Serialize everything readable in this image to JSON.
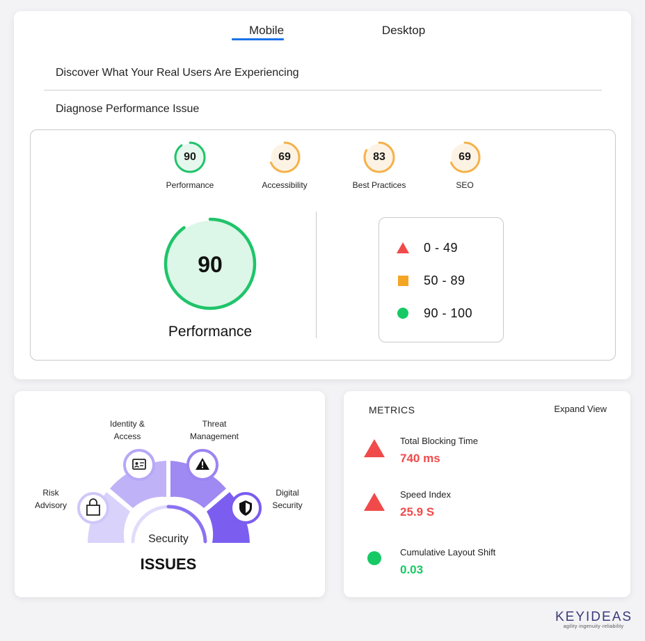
{
  "tabs": [
    {
      "label": "Mobile",
      "active": true
    },
    {
      "label": "Desktop",
      "active": false
    }
  ],
  "sections": {
    "discover": "Discover What Your Real Users Are Experiencing",
    "diagnose": "Diagnose Performance Issue"
  },
  "scores": [
    {
      "label": "Performance",
      "value": 90,
      "color": "#1fc46a",
      "fill": "#e6f8ee"
    },
    {
      "label": "Accessibility",
      "value": 69,
      "color": "#f5b14a",
      "fill": "#fdf3e4"
    },
    {
      "label": "Best Practices",
      "value": 83,
      "color": "#f5b14a",
      "fill": "#fdf3e4"
    },
    {
      "label": "SEO",
      "value": 69,
      "color": "#f5b14a",
      "fill": "#fdf3e4"
    }
  ],
  "main_score": {
    "label": "Performance",
    "value": 90,
    "color": "#1fc46a",
    "fill": "#dcf6e7"
  },
  "legend": [
    {
      "shape": "triangle",
      "color": "#f04a4a",
      "range": "0 - 49"
    },
    {
      "shape": "square",
      "color": "#f5a524",
      "range": "50 - 89"
    },
    {
      "shape": "circle",
      "color": "#17c964",
      "range": "90 - 100"
    }
  ],
  "security": {
    "center_label": "Security",
    "title": "ISSUES",
    "segments": [
      {
        "label_line1": "Risk",
        "label_line2": "Advisory",
        "icon": "shopping-bag-icon"
      },
      {
        "label_line1": "Identity &",
        "label_line2": "Access",
        "icon": "id-card-icon"
      },
      {
        "label_line1": "Threat",
        "label_line2": "Management",
        "icon": "warning-icon"
      },
      {
        "label_line1": "Digital",
        "label_line2": "Security",
        "icon": "shield-icon"
      }
    ]
  },
  "metrics": {
    "title": "METRICS",
    "expand_label": "Expand View",
    "items": [
      {
        "name": "Total Blocking Time",
        "value": "740 ms",
        "status": "triangle",
        "color": "#f04a4a"
      },
      {
        "name": "Speed Index",
        "value": "25.9 S",
        "status": "triangle",
        "color": "#f04a4a"
      },
      {
        "name": "Cumulative Layout Shift",
        "value": "0.03",
        "status": "circle",
        "color": "#17c964"
      }
    ]
  },
  "brand": {
    "name": "KEYIDEAS",
    "tagline": "agility·ingenuity·reliability"
  }
}
